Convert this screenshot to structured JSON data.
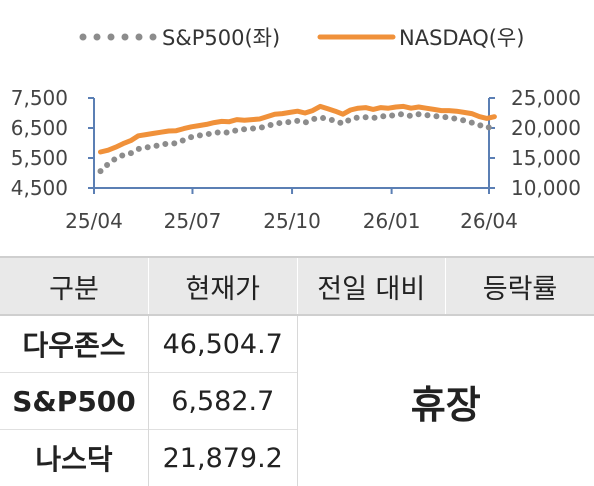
{
  "chart_data": {
    "type": "line",
    "legend_position": "top",
    "series": [
      {
        "name": "S&P500(좌)",
        "axis": "left",
        "style": "dotted",
        "color": "#8c8c8c",
        "points": [
          [
            "2025-04-07",
            5062
          ],
          [
            "2025-04-14",
            5300
          ],
          [
            "2025-04-21",
            5480
          ],
          [
            "2025-04-28",
            5600
          ],
          [
            "2025-05-05",
            5660
          ],
          [
            "2025-05-12",
            5800
          ],
          [
            "2025-05-19",
            5850
          ],
          [
            "2025-05-26",
            5880
          ],
          [
            "2025-06-02",
            5950
          ],
          [
            "2025-06-09",
            5980
          ],
          [
            "2025-06-16",
            5990
          ],
          [
            "2025-06-23",
            6100
          ],
          [
            "2025-06-30",
            6200
          ],
          [
            "2025-07-07",
            6250
          ],
          [
            "2025-07-14",
            6290
          ],
          [
            "2025-07-21",
            6330
          ],
          [
            "2025-07-28",
            6370
          ],
          [
            "2025-08-04",
            6340
          ],
          [
            "2025-08-11",
            6430
          ],
          [
            "2025-08-18",
            6460
          ],
          [
            "2025-08-25",
            6480
          ],
          [
            "2025-09-01",
            6500
          ],
          [
            "2025-09-08",
            6570
          ],
          [
            "2025-09-15",
            6640
          ],
          [
            "2025-09-22",
            6680
          ],
          [
            "2025-09-29",
            6700
          ],
          [
            "2025-10-06",
            6740
          ],
          [
            "2025-10-13",
            6680
          ],
          [
            "2025-10-20",
            6790
          ],
          [
            "2025-10-27",
            6850
          ],
          [
            "2025-11-03",
            6800
          ],
          [
            "2025-11-10",
            6740
          ],
          [
            "2025-11-17",
            6640
          ],
          [
            "2025-11-24",
            6800
          ],
          [
            "2025-12-01",
            6850
          ],
          [
            "2025-12-08",
            6860
          ],
          [
            "2025-12-15",
            6830
          ],
          [
            "2025-12-22",
            6900
          ],
          [
            "2025-12-29",
            6880
          ],
          [
            "2026-01-05",
            6950
          ],
          [
            "2026-01-12",
            6960
          ],
          [
            "2026-01-19",
            6900
          ],
          [
            "2026-01-26",
            6960
          ],
          [
            "2026-02-02",
            6930
          ],
          [
            "2026-02-09",
            6900
          ],
          [
            "2026-02-16",
            6880
          ],
          [
            "2026-02-23",
            6850
          ],
          [
            "2026-03-02",
            6800
          ],
          [
            "2026-03-09",
            6750
          ],
          [
            "2026-03-16",
            6680
          ],
          [
            "2026-03-23",
            6600
          ],
          [
            "2026-03-30",
            6500
          ],
          [
            "2026-04-06",
            6582.7
          ]
        ]
      },
      {
        "name": "NASDAQ(우)",
        "axis": "right",
        "style": "solid",
        "color": "#f0913a",
        "points": [
          [
            "2025-04-07",
            16000
          ],
          [
            "2025-04-14",
            16300
          ],
          [
            "2025-04-21",
            16800
          ],
          [
            "2025-04-28",
            17400
          ],
          [
            "2025-05-05",
            17900
          ],
          [
            "2025-05-12",
            18700
          ],
          [
            "2025-05-19",
            18900
          ],
          [
            "2025-05-26",
            19100
          ],
          [
            "2025-06-02",
            19300
          ],
          [
            "2025-06-09",
            19500
          ],
          [
            "2025-06-16",
            19550
          ],
          [
            "2025-06-23",
            19900
          ],
          [
            "2025-06-30",
            20200
          ],
          [
            "2025-07-07",
            20400
          ],
          [
            "2025-07-14",
            20600
          ],
          [
            "2025-07-21",
            20900
          ],
          [
            "2025-07-28",
            21100
          ],
          [
            "2025-08-04",
            21050
          ],
          [
            "2025-08-11",
            21400
          ],
          [
            "2025-08-18",
            21300
          ],
          [
            "2025-08-25",
            21400
          ],
          [
            "2025-09-01",
            21500
          ],
          [
            "2025-09-08",
            21900
          ],
          [
            "2025-09-15",
            22300
          ],
          [
            "2025-09-22",
            22400
          ],
          [
            "2025-09-29",
            22600
          ],
          [
            "2025-10-06",
            22800
          ],
          [
            "2025-10-13",
            22500
          ],
          [
            "2025-10-20",
            22900
          ],
          [
            "2025-10-27",
            23600
          ],
          [
            "2025-11-03",
            23200
          ],
          [
            "2025-11-10",
            22800
          ],
          [
            "2025-11-17",
            22300
          ],
          [
            "2025-11-24",
            23000
          ],
          [
            "2025-12-01",
            23300
          ],
          [
            "2025-12-08",
            23400
          ],
          [
            "2025-12-15",
            23100
          ],
          [
            "2025-12-22",
            23400
          ],
          [
            "2025-12-29",
            23300
          ],
          [
            "2026-01-05",
            23500
          ],
          [
            "2026-01-12",
            23600
          ],
          [
            "2026-01-19",
            23300
          ],
          [
            "2026-01-26",
            23500
          ],
          [
            "2026-02-02",
            23300
          ],
          [
            "2026-02-09",
            23100
          ],
          [
            "2026-02-16",
            22900
          ],
          [
            "2026-02-23",
            22900
          ],
          [
            "2026-03-02",
            22800
          ],
          [
            "2026-03-09",
            22600
          ],
          [
            "2026-03-16",
            22400
          ],
          [
            "2026-03-23",
            21900
          ],
          [
            "2026-03-30",
            21600
          ],
          [
            "2026-04-06",
            21879.2
          ]
        ]
      }
    ],
    "x_axis": {
      "range": [
        "2025-04-01",
        "2026-04-01"
      ],
      "ticks": [
        {
          "value": "2025-04-01",
          "label": "25/04"
        },
        {
          "value": "2025-07-01",
          "label": "25/07"
        },
        {
          "value": "2025-10-01",
          "label": "25/10"
        },
        {
          "value": "2026-01-01",
          "label": "26/01"
        },
        {
          "value": "2026-04-01",
          "label": "26/04"
        }
      ]
    },
    "y_left": {
      "range": [
        4500,
        7500
      ],
      "ticks": [
        {
          "value": 4500,
          "label": "4,500"
        },
        {
          "value": 5500,
          "label": "5,500"
        },
        {
          "value": 6500,
          "label": "6,500"
        },
        {
          "value": 7500,
          "label": "7,500"
        }
      ]
    },
    "y_right": {
      "range": [
        10000,
        25000
      ],
      "ticks": [
        {
          "value": 10000,
          "label": "10,000"
        },
        {
          "value": 15000,
          "label": "15,000"
        },
        {
          "value": 20000,
          "label": "20,000"
        },
        {
          "value": 25000,
          "label": "25,000"
        }
      ]
    },
    "axis_color": "#5b7fb4",
    "grid": false
  },
  "table": {
    "headers": [
      "구분",
      "현재가",
      "전일 대비",
      "등락률"
    ],
    "rows": [
      {
        "name": "다우존스",
        "value": "46,504.7"
      },
      {
        "name": "S&P500",
        "value": "6,582.7"
      },
      {
        "name": "나스닥",
        "value": "21,879.2"
      }
    ],
    "merged_status": "휴장"
  }
}
